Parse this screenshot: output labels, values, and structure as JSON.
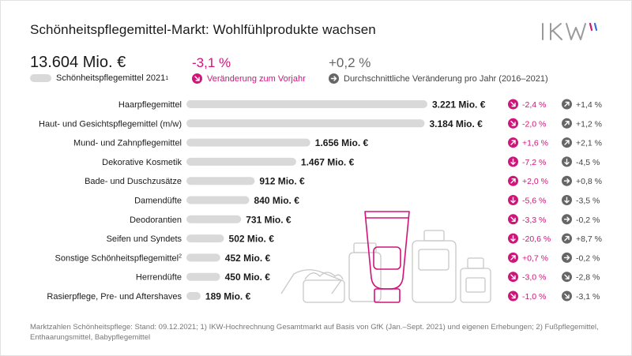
{
  "header": {
    "title": "Schönheitspflegemittel-Markt: Wohlfühlprodukte wachsen",
    "logo_text": "IKW"
  },
  "kpis": {
    "total_value": "13.604 Mio. €",
    "total_label": "Schönheitspflegemittel 2021",
    "total_label_sup": "1",
    "change_value": "-3,1 %",
    "change_label": "Veränderung zum Vorjahr",
    "avg_value": "+0,2 %",
    "avg_label": "Durchschnittliche Veränderung pro Jahr (2016–2021)"
  },
  "colors": {
    "accent": "#d0157a",
    "bar": "#d9d9d9",
    "icon_gray": "#666666",
    "text": "#1a1a1a"
  },
  "icons": {
    "down": "arrow-down-icon",
    "down_right": "arrow-down-right-icon",
    "up_right": "arrow-up-right-icon",
    "right": "arrow-right-icon"
  },
  "chart_data": {
    "type": "bar",
    "orientation": "horizontal",
    "unit": "Mio. €",
    "categories": [
      "Haarpflegemittel",
      "Haut- und Gesichtspflegemittel (m/w)",
      "Mund- und Zahnpflegemittel",
      "Dekorative Kosmetik",
      "Bade- und Duschzusätze",
      "Damendüfte",
      "Deodorantien",
      "Seifen und Syndets",
      "Sonstige Schönheitspflegemittel",
      "Herrendüfte",
      "Rasierpflege, Pre- und Aftershaves"
    ],
    "category_sup": [
      "",
      "",
      "",
      "",
      "",
      "",
      "",
      "",
      "2",
      "",
      ""
    ],
    "values": [
      3221,
      3184,
      1656,
      1467,
      912,
      840,
      731,
      502,
      452,
      450,
      189
    ],
    "value_labels": [
      "3.221 Mio. €",
      "3.184 Mio. €",
      "1.656 Mio. €",
      "1.467 Mio. €",
      "912 Mio. €",
      "840 Mio. €",
      "731 Mio. €",
      "502 Mio. €",
      "452 Mio. €",
      "450 Mio. €",
      "189 Mio. €"
    ],
    "change_labels": [
      "-2,4 %",
      "-2,0 %",
      "+1,6 %",
      "-7,2 %",
      "+2,0 %",
      "-5,6 %",
      "-3,3 %",
      "-20,6 %",
      "+0,7 %",
      "-3,0 %",
      "-1,0 %"
    ],
    "change_icons": [
      "down_right",
      "down_right",
      "up_right",
      "down",
      "up_right",
      "down",
      "down_right",
      "down",
      "up_right",
      "down_right",
      "down_right"
    ],
    "avg_labels": [
      "+1,4 %",
      "+1,2 %",
      "+2,1 %",
      "-4,5 %",
      "+0,8 %",
      "-3,5 %",
      "-0,2 %",
      "+8,7 %",
      "-0,2 %",
      "-2,8 %",
      "-3,1 %"
    ],
    "avg_icons": [
      "up_right",
      "up_right",
      "up_right",
      "down",
      "right",
      "down",
      "right",
      "up_right",
      "right",
      "down_right",
      "down_right"
    ],
    "xlim": [
      0,
      3221
    ],
    "grid": false
  },
  "footnote": "Marktzahlen Schönheitspflege: Stand: 09.12.2021; 1) IKW-Hochrechnung Gesamtmarkt auf Basis von GfK (Jan.–Sept. 2021) und eigenen Erhebungen; 2) Fußpflegemittel, Enthaarungsmittel, Babypflegemittel"
}
